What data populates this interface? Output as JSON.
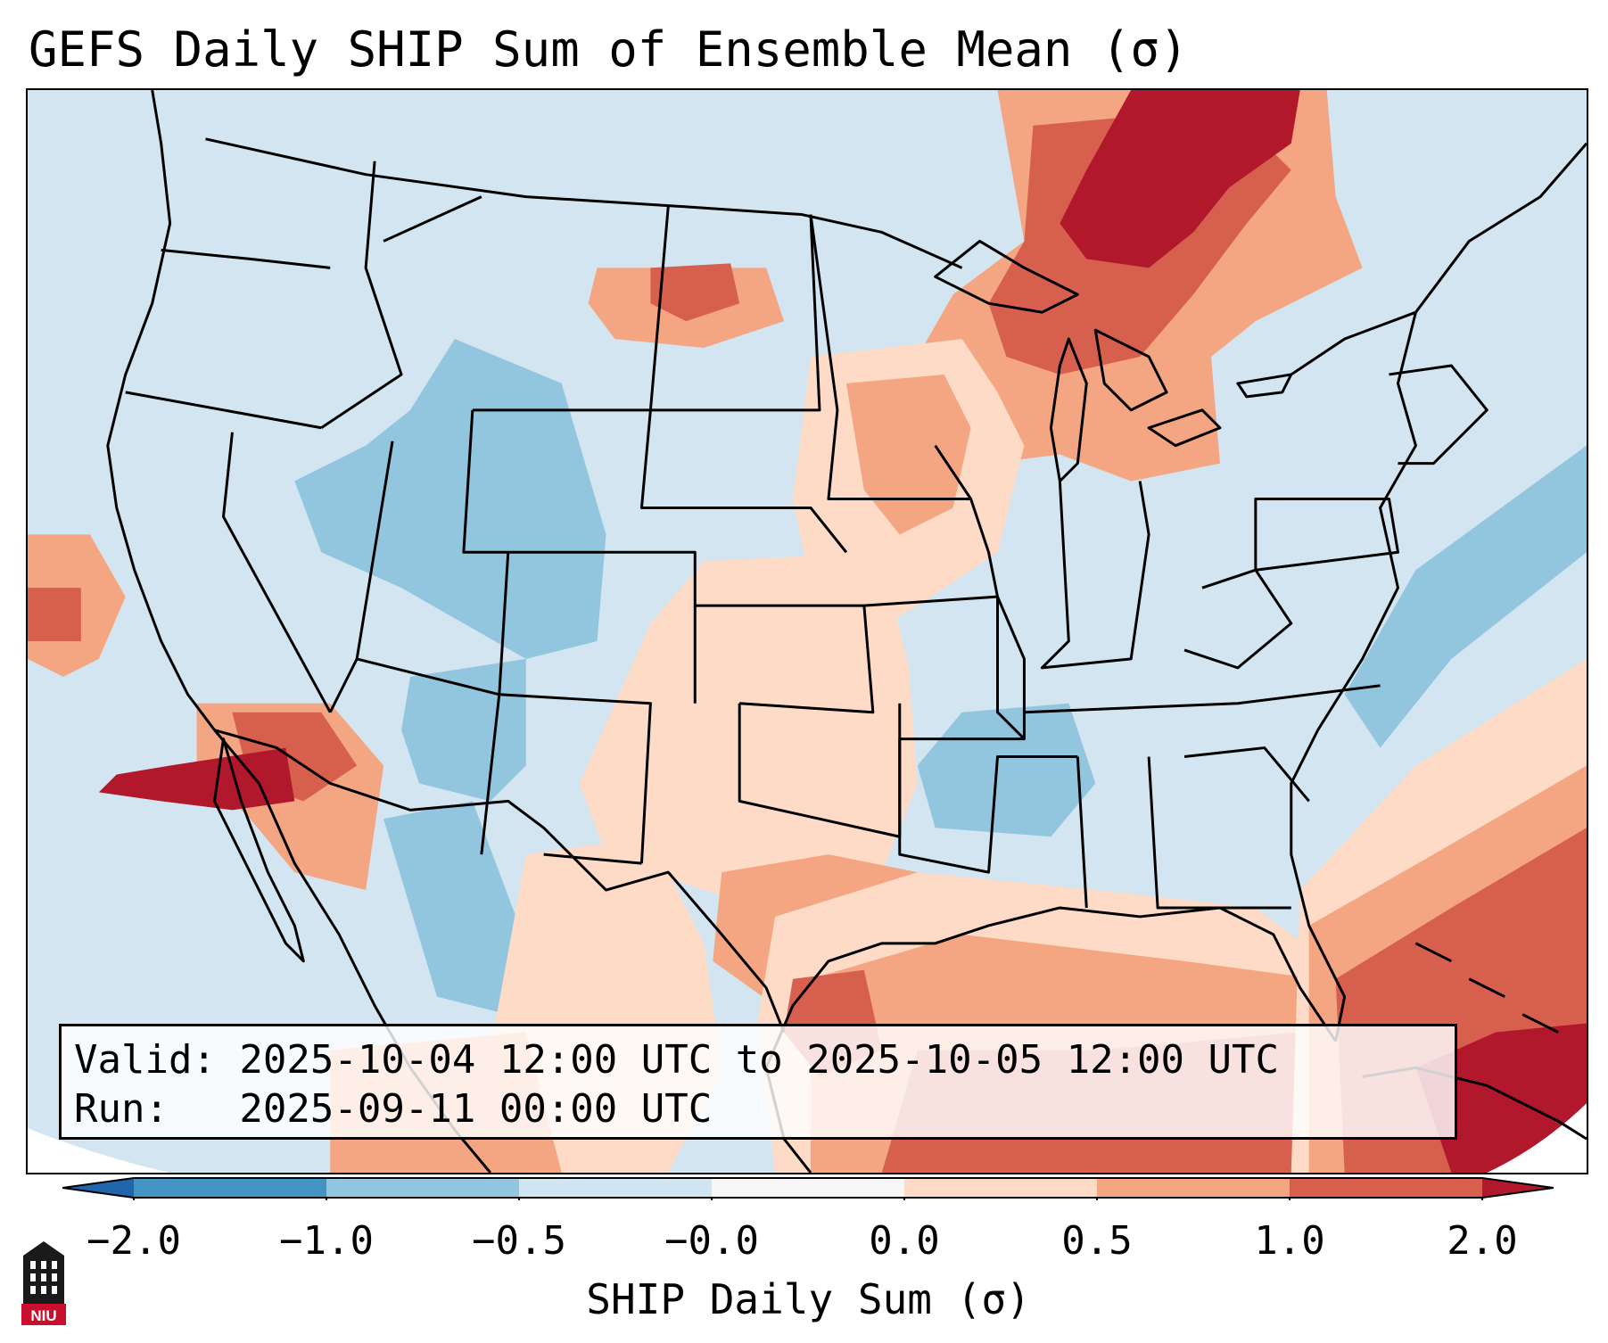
{
  "title": "GEFS Daily SHIP Sum of Ensemble Mean (σ)",
  "info": {
    "valid": "Valid: 2025-10-04 12:00 UTC to 2025-10-05 12:00 UTC",
    "run": "Run:   2025-09-11 00:00 UTC"
  },
  "colorbar": {
    "label": "SHIP Daily Sum (σ)",
    "ticks": [
      "−2.0",
      "−1.0",
      "−0.5",
      "−0.0",
      "0.0",
      "0.5",
      "1.0",
      "2.0"
    ],
    "colors": [
      "#4393c3",
      "#92c5de",
      "#d1e5f0",
      "#f7f7f7",
      "#fddbc7",
      "#f4a582",
      "#d6604d",
      "#b2182b"
    ],
    "under_color": "#2166ac",
    "over_color": "#b2182b"
  },
  "chart_data": {
    "type": "heatmap",
    "title": "GEFS Daily SHIP Sum of Ensemble Mean (σ)",
    "variable": "SHIP Daily Sum (σ)",
    "levels": [
      -2.0,
      -1.0,
      -0.5,
      -0.0,
      0.0,
      0.5,
      1.0,
      2.0
    ],
    "regions": [
      {
        "name": "Great Lakes / Ontario",
        "value_class": "1.0 to 2.0"
      },
      {
        "name": "Upper Midwest",
        "value_class": "0.5 to 1.0"
      },
      {
        "name": "Southern Plains / Texas",
        "value_class": "0.0 to 0.5"
      },
      {
        "name": "Gulf of Mexico",
        "value_class": "0.5 to 1.0"
      },
      {
        "name": "Western Atlantic / Bahamas",
        "value_class": "1.0 to 2.0"
      },
      {
        "name": "Southern California / Baja",
        "value_class": "1.0 to 2.0"
      },
      {
        "name": "Colorado / Utah",
        "value_class": "-1.0 to -0.5"
      },
      {
        "name": "Southeast US",
        "value_class": "-0.5 to -0.0"
      }
    ]
  },
  "logo": {
    "text": "NIU"
  }
}
